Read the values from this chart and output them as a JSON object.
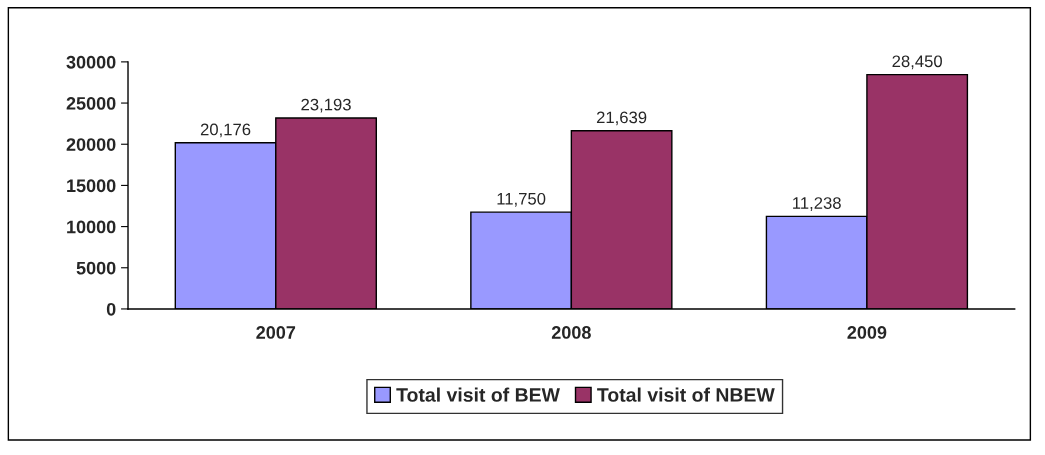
{
  "chart_data": {
    "type": "bar",
    "categories": [
      "2007",
      "2008",
      "2009"
    ],
    "series": [
      {
        "name": "Total visit of BEW",
        "color": "#9999ff",
        "values": [
          20176,
          11750,
          11238
        ],
        "value_labels": [
          "20,176",
          "11,750",
          "11,238"
        ]
      },
      {
        "name": "Total visit of NBEW",
        "color": "#993366",
        "values": [
          23193,
          21639,
          28450
        ],
        "value_labels": [
          "23,193",
          "21,639",
          "28,450"
        ]
      }
    ],
    "ylim": [
      0,
      30000
    ],
    "yticks": [
      0,
      5000,
      10000,
      15000,
      20000,
      25000,
      30000
    ],
    "grid": false,
    "legend": "bottom"
  }
}
